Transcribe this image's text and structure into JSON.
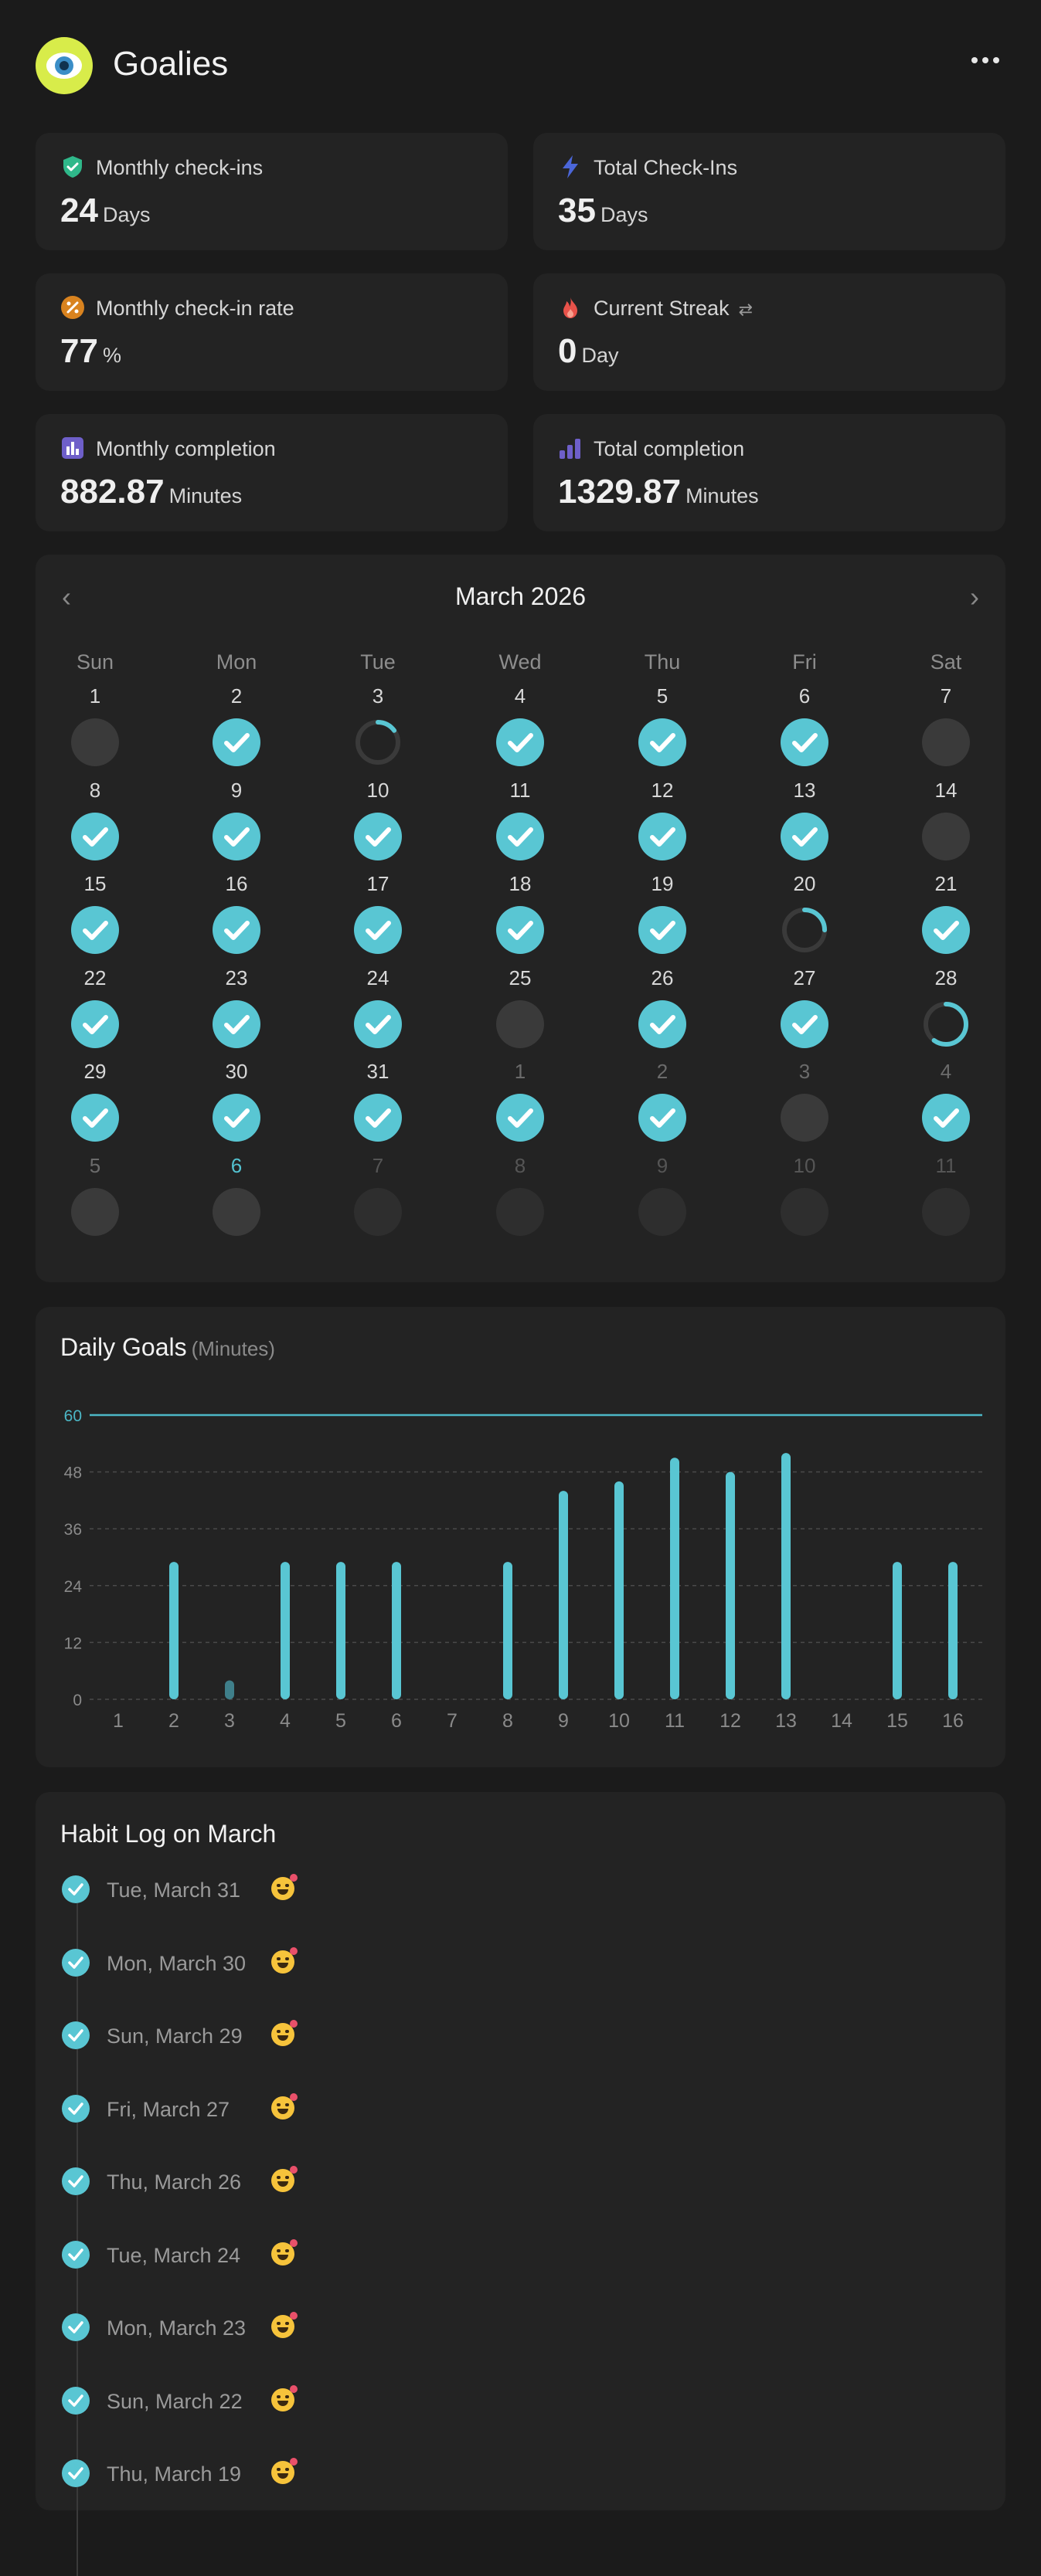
{
  "app": {
    "title": "Goalies"
  },
  "stats": [
    {
      "label": "Monthly check-ins",
      "value": "24",
      "unit": "Days",
      "icon": "shield-check-icon",
      "color": "#2fb88a"
    },
    {
      "label": "Total Check-Ins",
      "value": "35",
      "unit": "Days",
      "icon": "lightning-icon",
      "color": "#4b66d8"
    },
    {
      "label": "Monthly check-in rate",
      "value": "77",
      "unit": "%",
      "icon": "percent-icon",
      "color": "#d9831f"
    },
    {
      "label": "Current Streak",
      "value": "0",
      "unit": "Day",
      "icon": "flame-icon",
      "color": "#e8524a"
    },
    {
      "label": "Monthly completion",
      "value": "882.87",
      "unit": "Minutes",
      "icon": "bar-chart-icon",
      "color": "#6e5fc9"
    },
    {
      "label": "Total completion",
      "value": "1329.87",
      "unit": "Minutes",
      "icon": "ascending-bars-icon",
      "color": "#6e5fc9"
    }
  ],
  "calendar": {
    "month": "March 2026",
    "weekdays": [
      "Sun",
      "Mon",
      "Tue",
      "Wed",
      "Thu",
      "Fri",
      "Sat"
    ],
    "days": [
      {
        "n": "1",
        "s": "empty"
      },
      {
        "n": "2",
        "s": "done"
      },
      {
        "n": "3",
        "s": "partial",
        "p": 0.15
      },
      {
        "n": "4",
        "s": "done"
      },
      {
        "n": "5",
        "s": "done"
      },
      {
        "n": "6",
        "s": "done"
      },
      {
        "n": "7",
        "s": "empty"
      },
      {
        "n": "8",
        "s": "done"
      },
      {
        "n": "9",
        "s": "done"
      },
      {
        "n": "10",
        "s": "done"
      },
      {
        "n": "11",
        "s": "done"
      },
      {
        "n": "12",
        "s": "done"
      },
      {
        "n": "13",
        "s": "done"
      },
      {
        "n": "14",
        "s": "empty"
      },
      {
        "n": "15",
        "s": "done"
      },
      {
        "n": "16",
        "s": "done"
      },
      {
        "n": "17",
        "s": "done"
      },
      {
        "n": "18",
        "s": "done"
      },
      {
        "n": "19",
        "s": "done"
      },
      {
        "n": "20",
        "s": "partial",
        "p": 0.25
      },
      {
        "n": "21",
        "s": "done"
      },
      {
        "n": "22",
        "s": "done"
      },
      {
        "n": "23",
        "s": "done"
      },
      {
        "n": "24",
        "s": "done"
      },
      {
        "n": "25",
        "s": "empty"
      },
      {
        "n": "26",
        "s": "done"
      },
      {
        "n": "27",
        "s": "done"
      },
      {
        "n": "28",
        "s": "partial",
        "p": 0.6
      },
      {
        "n": "29",
        "s": "done"
      },
      {
        "n": "30",
        "s": "done"
      },
      {
        "n": "31",
        "s": "done"
      },
      {
        "n": "1",
        "s": "done",
        "o": true
      },
      {
        "n": "2",
        "s": "done",
        "o": true
      },
      {
        "n": "3",
        "s": "empty",
        "o": true
      },
      {
        "n": "4",
        "s": "done",
        "o": true
      },
      {
        "n": "5",
        "s": "empty",
        "o": true
      },
      {
        "n": "6",
        "s": "empty",
        "o": true,
        "today": true
      },
      {
        "n": "7",
        "s": "faint",
        "f": true
      },
      {
        "n": "8",
        "s": "faint",
        "f": true
      },
      {
        "n": "9",
        "s": "faint",
        "f": true
      },
      {
        "n": "10",
        "s": "faint",
        "f": true
      },
      {
        "n": "11",
        "s": "faint",
        "f": true
      }
    ]
  },
  "daily_goals": {
    "title": "Daily Goals",
    "unit": "(Minutes)"
  },
  "chart_data": {
    "type": "bar",
    "categories": [
      "1",
      "2",
      "3",
      "4",
      "5",
      "6",
      "7",
      "8",
      "9",
      "10",
      "11",
      "12",
      "13",
      "14",
      "15",
      "16"
    ],
    "values": [
      0,
      29,
      4,
      29,
      29,
      29,
      0,
      29,
      44,
      46,
      51,
      48,
      52,
      0,
      29,
      29
    ],
    "yticks": [
      0,
      12,
      24,
      36,
      48,
      60
    ],
    "ylim": [
      0,
      60
    ],
    "goal_line": 60,
    "grid": "dashed",
    "colors": {
      "bar": "#59c6d3",
      "bar_low": "#3f7f8a",
      "goal": "#4cb7c6"
    }
  },
  "habit_log": {
    "title": "Habit Log on March",
    "entries": [
      "Tue, March 31",
      "Mon, March 30",
      "Sun, March 29",
      "Fri, March 27",
      "Thu, March 26",
      "Tue, March 24",
      "Mon, March 23",
      "Sun, March 22",
      "Thu, March 19"
    ]
  },
  "colors": {
    "accent": "#59c6d3",
    "card": "#232323",
    "background": "#1b1b1b"
  }
}
